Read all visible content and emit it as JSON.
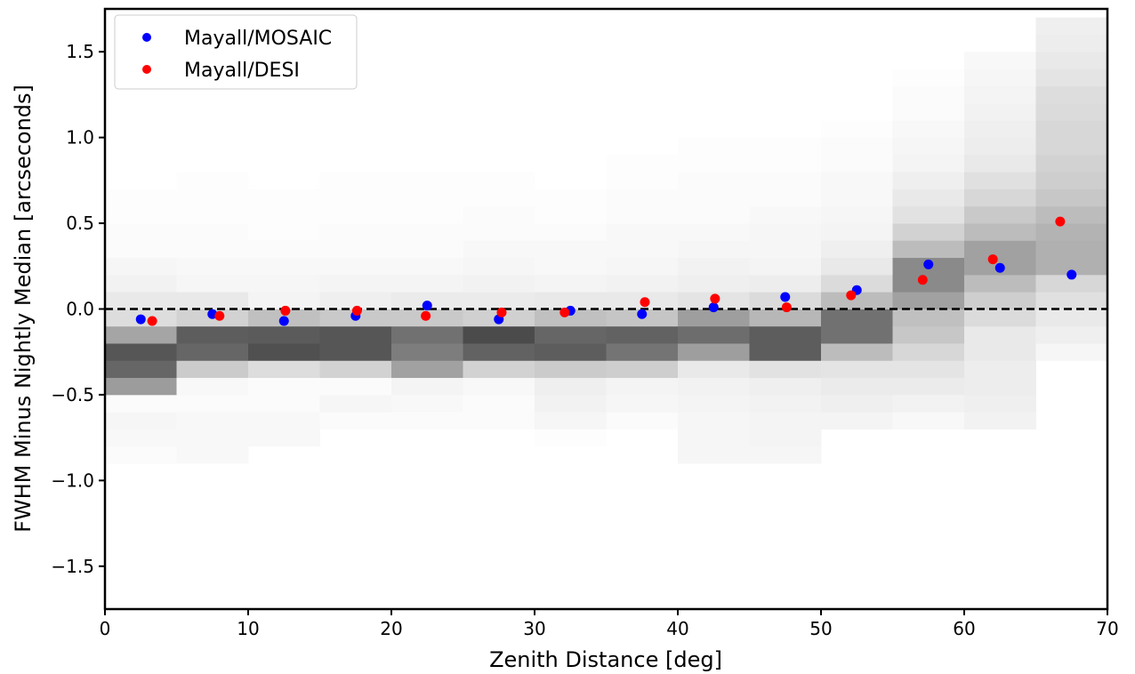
{
  "chart_data": {
    "type": "scatter",
    "title": "",
    "xlabel": "Zenith Distance [deg]",
    "ylabel": "FWHM Minus Nightly Median [arcseconds]",
    "xlim": [
      0,
      70
    ],
    "ylim": [
      -1.75,
      1.75
    ],
    "xticks": [
      0,
      10,
      20,
      30,
      40,
      50,
      60,
      70
    ],
    "yticks": [
      -1.5,
      -1.0,
      -0.5,
      0.0,
      0.5,
      1.0,
      1.5
    ],
    "xtick_labels": [
      "0",
      "10",
      "20",
      "30",
      "40",
      "50",
      "60",
      "70"
    ],
    "ytick_labels": [
      "−1.5",
      "−1.0",
      "−0.5",
      "0.0",
      "0.5",
      "1.0",
      "1.5"
    ],
    "grid": false,
    "legend_position": "top-left",
    "reference_line": {
      "y": 0,
      "style": "dashed",
      "color": "#000000"
    },
    "series": [
      {
        "name": "Mayall/MOSAIC",
        "color": "#0000ff",
        "x": [
          2.5,
          7.5,
          12.5,
          17.5,
          22.5,
          27.5,
          32.5,
          37.5,
          42.5,
          47.5,
          52.5,
          57.5,
          62.5,
          67.5
        ],
        "y": [
          -0.06,
          -0.03,
          -0.07,
          -0.04,
          0.02,
          -0.06,
          -0.01,
          -0.03,
          0.01,
          0.07,
          0.11,
          0.26,
          0.24,
          0.2
        ]
      },
      {
        "name": "Mayall/DESI",
        "color": "#ff0000",
        "x": [
          3.3,
          8.0,
          12.6,
          17.6,
          22.4,
          27.7,
          32.1,
          37.7,
          42.6,
          47.6,
          52.1,
          57.1,
          62.0,
          66.7
        ],
        "y": [
          -0.07,
          -0.04,
          -0.01,
          -0.01,
          -0.04,
          -0.02,
          -0.02,
          0.04,
          0.06,
          0.01,
          0.08,
          0.17,
          0.29,
          0.51
        ]
      }
    ],
    "background_heatmap": {
      "type": "heatmap",
      "colormap": "greys",
      "x_bins": [
        0,
        5,
        10,
        15,
        20,
        25,
        30,
        35,
        40,
        45,
        50,
        55,
        60,
        65,
        70
      ],
      "y_bins": [
        -0.9,
        -0.8,
        -0.7,
        -0.6,
        -0.5,
        -0.4,
        -0.3,
        -0.2,
        -0.1,
        0.0,
        0.1,
        0.2,
        0.3,
        0.4,
        0.5,
        0.6,
        0.7,
        0.8,
        0.9,
        1.0,
        1.1,
        1.2,
        1.3,
        1.4,
        1.5,
        1.6,
        1.7
      ],
      "intensity": [
        [
          0.02,
          0.03,
          0.04,
          0.02,
          0.44,
          0.68,
          0.75,
          0.4,
          0.15,
          0.1,
          0.06,
          0.04,
          0.02,
          0.02,
          0.01,
          0.01,
          0.0,
          0.0,
          0.0,
          0.0,
          0.0,
          0.0,
          0.0,
          0.0,
          0.0,
          0.0
        ],
        [
          0.03,
          0.03,
          0.03,
          0.02,
          0.03,
          0.23,
          0.68,
          0.72,
          0.2,
          0.1,
          0.04,
          0.03,
          0.02,
          0.02,
          0.01,
          0.01,
          0.01,
          0.0,
          0.0,
          0.0,
          0.0,
          0.0,
          0.0,
          0.0,
          0.0,
          0.0
        ],
        [
          0.0,
          0.03,
          0.03,
          0.02,
          0.02,
          0.15,
          0.78,
          0.73,
          0.28,
          0.05,
          0.04,
          0.03,
          0.02,
          0.01,
          0.01,
          0.01,
          0.0,
          0.0,
          0.0,
          0.0,
          0.0,
          0.0,
          0.0,
          0.0,
          0.0,
          0.0
        ],
        [
          0.0,
          0.0,
          0.02,
          0.04,
          0.02,
          0.2,
          0.75,
          0.75,
          0.24,
          0.07,
          0.05,
          0.03,
          0.02,
          0.02,
          0.01,
          0.01,
          0.01,
          0.0,
          0.0,
          0.0,
          0.0,
          0.0,
          0.0,
          0.0,
          0.0,
          0.0
        ],
        [
          0.0,
          0.0,
          0.02,
          0.03,
          0.05,
          0.42,
          0.58,
          0.63,
          0.24,
          0.09,
          0.05,
          0.03,
          0.02,
          0.02,
          0.01,
          0.01,
          0.01,
          0.0,
          0.0,
          0.0,
          0.0,
          0.0,
          0.0,
          0.0,
          0.0,
          0.0
        ],
        [
          0.0,
          0.0,
          0.02,
          0.02,
          0.03,
          0.2,
          0.7,
          0.8,
          0.21,
          0.09,
          0.06,
          0.04,
          0.03,
          0.02,
          0.02,
          0.01,
          0.01,
          0.0,
          0.0,
          0.0,
          0.0,
          0.0,
          0.0,
          0.0,
          0.0,
          0.0
        ],
        [
          0.0,
          0.01,
          0.04,
          0.06,
          0.07,
          0.23,
          0.72,
          0.68,
          0.28,
          0.1,
          0.05,
          0.03,
          0.03,
          0.02,
          0.01,
          0.01,
          0.0,
          0.0,
          0.0,
          0.0,
          0.0,
          0.0,
          0.0,
          0.0,
          0.0,
          0.0
        ],
        [
          0.0,
          0.0,
          0.02,
          0.04,
          0.05,
          0.22,
          0.62,
          0.7,
          0.26,
          0.1,
          0.06,
          0.04,
          0.03,
          0.03,
          0.02,
          0.02,
          0.01,
          0.01,
          0.0,
          0.0,
          0.0,
          0.0,
          0.0,
          0.0,
          0.0,
          0.0
        ],
        [
          0.04,
          0.04,
          0.04,
          0.05,
          0.06,
          0.1,
          0.43,
          0.65,
          0.43,
          0.12,
          0.07,
          0.06,
          0.04,
          0.03,
          0.02,
          0.02,
          0.02,
          0.01,
          0.01,
          0.0,
          0.0,
          0.0,
          0.0,
          0.0,
          0.0,
          0.0
        ],
        [
          0.04,
          0.05,
          0.05,
          0.06,
          0.07,
          0.13,
          0.72,
          0.72,
          0.32,
          0.16,
          0.08,
          0.05,
          0.04,
          0.04,
          0.03,
          0.02,
          0.02,
          0.01,
          0.01,
          0.0,
          0.0,
          0.0,
          0.0,
          0.0,
          0.0,
          0.0
        ],
        [
          0.0,
          0.0,
          0.05,
          0.07,
          0.09,
          0.12,
          0.3,
          0.63,
          0.63,
          0.3,
          0.16,
          0.1,
          0.07,
          0.05,
          0.04,
          0.03,
          0.03,
          0.02,
          0.02,
          0.01,
          0.0,
          0.0,
          0.0,
          0.0,
          0.0,
          0.0
        ],
        [
          0.0,
          0.0,
          0.03,
          0.06,
          0.09,
          0.12,
          0.18,
          0.25,
          0.28,
          0.42,
          0.52,
          0.52,
          0.3,
          0.2,
          0.13,
          0.1,
          0.07,
          0.05,
          0.04,
          0.03,
          0.02,
          0.02,
          0.01,
          0.0,
          0.0,
          0.0
        ],
        [
          0.0,
          0.0,
          0.06,
          0.07,
          0.08,
          0.08,
          0.1,
          0.1,
          0.16,
          0.22,
          0.3,
          0.42,
          0.42,
          0.3,
          0.24,
          0.18,
          0.14,
          0.1,
          0.08,
          0.07,
          0.06,
          0.05,
          0.04,
          0.03,
          0.0,
          0.0
        ],
        [
          0.0,
          0.0,
          0.0,
          0.0,
          0.0,
          0.0,
          0.04,
          0.07,
          0.1,
          0.14,
          0.18,
          0.35,
          0.35,
          0.34,
          0.3,
          0.25,
          0.22,
          0.2,
          0.18,
          0.18,
          0.16,
          0.15,
          0.12,
          0.1,
          0.08,
          0.07
        ]
      ]
    }
  }
}
